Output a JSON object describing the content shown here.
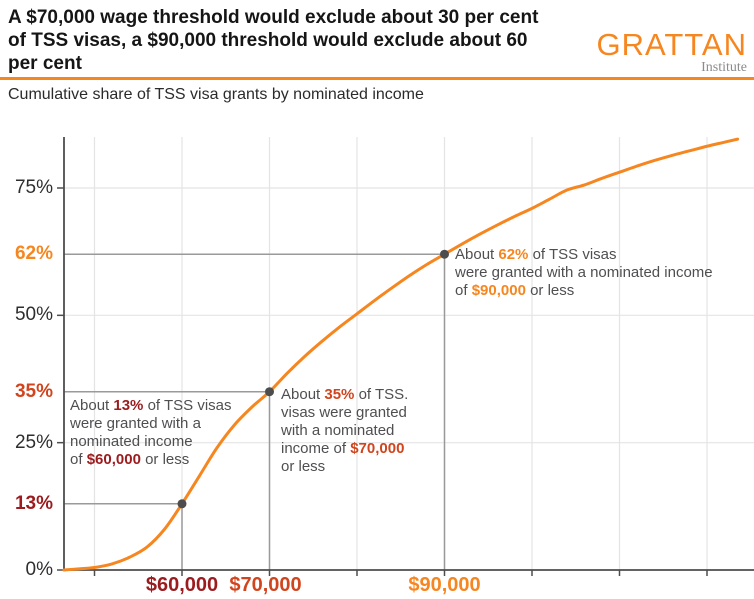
{
  "header": {
    "title_lines": [
      "A $70,000 wage threshold would exclude about 30 per cent",
      "of TSS visas, a $90,000 threshold would exclude about 60",
      "per cent"
    ],
    "logo": {
      "text": "GRATTAN",
      "subtext": "Institute"
    },
    "subtitle": "Cumulative share of TSS visa grants by nominated income"
  },
  "colors": {
    "orange": "#F6861F",
    "red_orange": "#D0451E",
    "dark_red": "#9B1B1E",
    "annotation_text": "#4F4F51",
    "tick_text": "#2E2E2E",
    "axis": "#4D4D4D",
    "grid": "#E4E4E4",
    "ref_line": "#9A9A9A",
    "logo_gray": "#8C8C8C",
    "title_text": "#151515"
  },
  "chart_data": {
    "type": "line",
    "title": "Cumulative share of TSS visa grants by nominated income",
    "xlabel": "",
    "ylabel": "",
    "x_axis": {
      "unit": "dollars",
      "range_dollars": [
        46500,
        125400
      ],
      "gridlines_dollars": [
        50000,
        60000,
        70000,
        80000,
        90000,
        100000,
        110000,
        120000
      ]
    },
    "y_axis": {
      "unit": "percent",
      "range_pct": [
        0,
        85
      ],
      "gridlines_pct": [
        25,
        50,
        75
      ]
    },
    "x_tick_labels": [
      {
        "label": "$60,000",
        "dollars": 60000,
        "color": "dark_red"
      },
      {
        "label": "$70,000",
        "dollars": 70000,
        "color": "red_orange"
      },
      {
        "label": "$90,000",
        "dollars": 90000,
        "color": "orange"
      }
    ],
    "y_tick_labels": [
      {
        "label": "0%",
        "pct": 0,
        "color": "tick_text",
        "bold": false
      },
      {
        "label": "13%",
        "pct": 13,
        "color": "dark_red",
        "bold": true
      },
      {
        "label": "25%",
        "pct": 25,
        "color": "tick_text",
        "bold": false
      },
      {
        "label": "35%",
        "pct": 35,
        "color": "red_orange",
        "bold": true
      },
      {
        "label": "50%",
        "pct": 50,
        "color": "tick_text",
        "bold": false
      },
      {
        "label": "62%",
        "pct": 62,
        "color": "orange",
        "bold": true
      },
      {
        "label": "75%",
        "pct": 75,
        "color": "tick_text",
        "bold": false
      }
    ],
    "series": [
      {
        "name": "Cumulative share of TSS visa grants by nominated income",
        "color": "orange",
        "points_income_k_pct": [
          [
            46.5,
            0
          ],
          [
            48,
            0.2
          ],
          [
            50,
            0.5
          ],
          [
            52,
            1.2
          ],
          [
            54,
            2.5
          ],
          [
            56,
            4.5
          ],
          [
            58,
            8
          ],
          [
            60,
            13
          ],
          [
            62,
            18.5
          ],
          [
            64,
            24
          ],
          [
            66,
            28.5
          ],
          [
            68,
            32
          ],
          [
            70,
            35
          ],
          [
            72,
            38.6
          ],
          [
            74,
            41.9
          ],
          [
            76,
            44.9
          ],
          [
            78,
            47.7
          ],
          [
            80,
            50.3
          ],
          [
            82,
            52.9
          ],
          [
            84,
            55.4
          ],
          [
            86,
            57.8
          ],
          [
            88,
            60
          ],
          [
            90,
            62
          ],
          [
            92,
            64
          ],
          [
            94,
            65.9
          ],
          [
            96,
            67.7
          ],
          [
            98,
            69.4
          ],
          [
            100,
            71
          ],
          [
            102,
            72.8
          ],
          [
            104,
            74.6
          ],
          [
            106,
            75.6
          ],
          [
            108,
            76.9
          ],
          [
            110,
            78.1
          ],
          [
            112,
            79.3
          ],
          [
            114,
            80.4
          ],
          [
            116,
            81.4
          ],
          [
            118,
            82.3
          ],
          [
            120,
            83.2
          ],
          [
            122,
            84
          ],
          [
            123.5,
            84.6
          ]
        ]
      }
    ],
    "markers": [
      {
        "income_k": 60,
        "pct": 13
      },
      {
        "income_k": 70,
        "pct": 35
      },
      {
        "income_k": 90,
        "pct": 62
      }
    ],
    "annotations": [
      {
        "point": {
          "income_k": 60,
          "pct": 13
        },
        "accent_color": "dark_red",
        "lines": [
          [
            {
              "t": "About "
            },
            {
              "t": "13%",
              "c": "dark_red"
            },
            {
              "t": " of TSS visas"
            }
          ],
          [
            {
              "t": "were granted with a"
            }
          ],
          [
            {
              "t": "nominated income"
            }
          ],
          [
            {
              "t": "of "
            },
            {
              "t": "$60,000",
              "c": "dark_red"
            },
            {
              "t": " or less"
            }
          ]
        ]
      },
      {
        "point": {
          "income_k": 70,
          "pct": 35
        },
        "accent_color": "red_orange",
        "lines": [
          [
            {
              "t": "About "
            },
            {
              "t": "35%",
              "c": "red_orange"
            },
            {
              "t": " of TSS."
            }
          ],
          [
            {
              "t": "visas were granted"
            }
          ],
          [
            {
              "t": "with a nominated"
            }
          ],
          [
            {
              "t": "income of "
            },
            {
              "t": "$70,000",
              "c": "red_orange"
            }
          ],
          [
            {
              "t": "or less"
            }
          ]
        ]
      },
      {
        "point": {
          "income_k": 90,
          "pct": 62
        },
        "accent_color": "orange",
        "lines": [
          [
            {
              "t": "About "
            },
            {
              "t": "62%",
              "c": "orange"
            },
            {
              "t": " of TSS visas"
            }
          ],
          [
            {
              "t": "were granted with a nominated income"
            }
          ],
          [
            {
              "t": "of "
            },
            {
              "t": "$90,000",
              "c": "orange"
            },
            {
              "t": " or less"
            }
          ]
        ]
      }
    ]
  }
}
